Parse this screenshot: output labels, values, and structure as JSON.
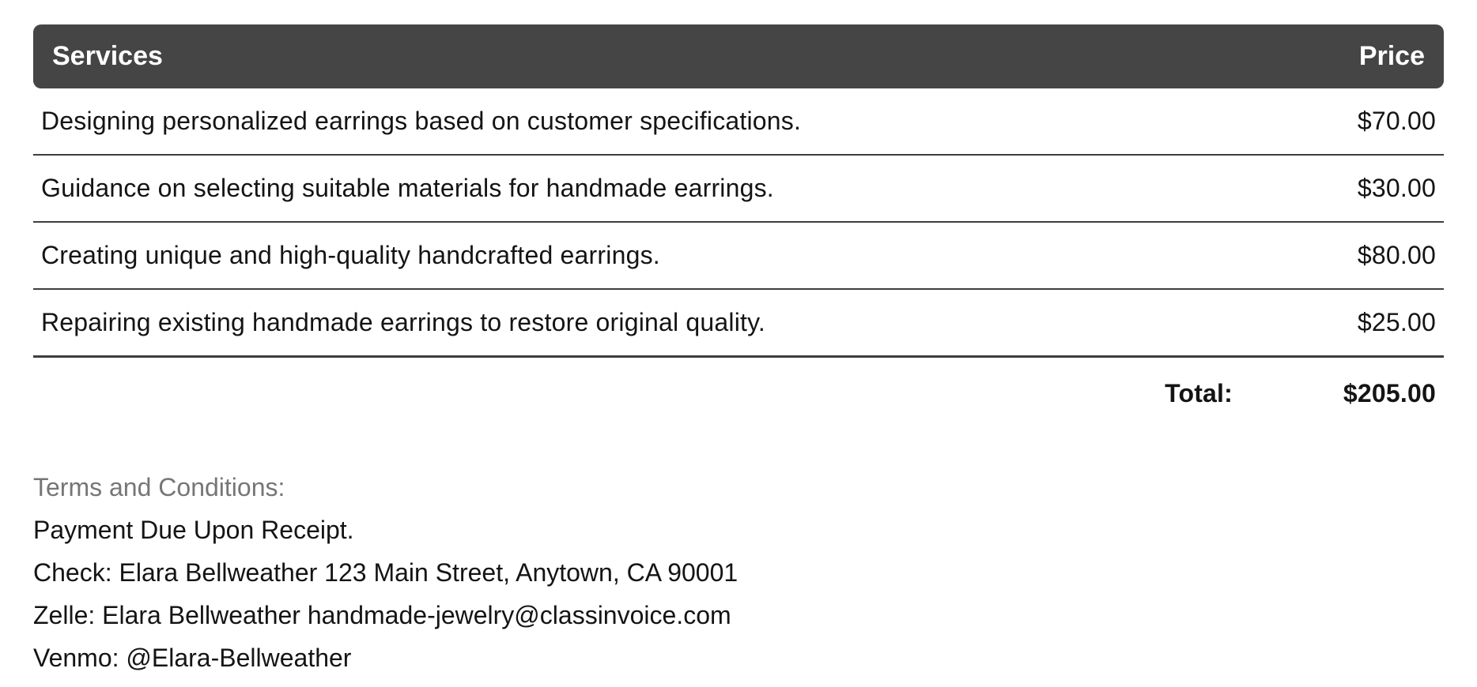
{
  "table": {
    "header": {
      "services": "Services",
      "price": "Price"
    },
    "rows": [
      {
        "service": "Designing personalized earrings based on customer specifications.",
        "price": "$70.00"
      },
      {
        "service": "Guidance on selecting suitable materials for handmade earrings.",
        "price": "$30.00"
      },
      {
        "service": "Creating unique and high-quality handcrafted earrings.",
        "price": "$80.00"
      },
      {
        "service": "Repairing existing handmade earrings to restore original quality.",
        "price": "$25.00"
      }
    ],
    "total_label": "Total:",
    "total_value": "$205.00"
  },
  "terms": {
    "heading": "Terms and Conditions:",
    "lines": [
      "Payment Due Upon Receipt.",
      "Check: Elara Bellweather 123 Main Street, Anytown, CA 90001",
      "Zelle: Elara Bellweather handmade-jewelry@classinvoice.com",
      "Venmo: @Elara-Bellweather"
    ]
  },
  "colors": {
    "header_bg": "#454545",
    "header_text": "#ffffff",
    "body_text": "#141414",
    "terms_heading": "#767676",
    "separator": "#3d3d3d",
    "page_bg": "#ffffff"
  }
}
